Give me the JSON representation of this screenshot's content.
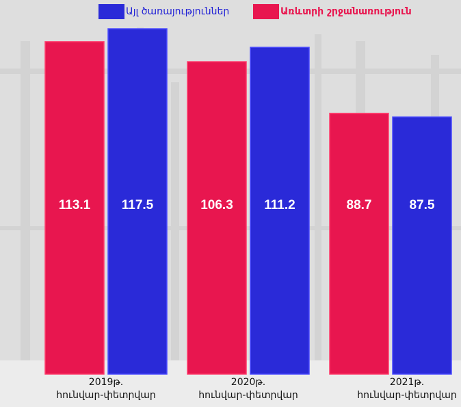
{
  "legend": {
    "items": [
      {
        "label": "Այլ ծառայություններ",
        "color": "#2a2ad8",
        "label_color": "#1f1fd6"
      },
      {
        "label": "Առևտրի շրջանառություն",
        "color": "#e8164f",
        "label_color": "#e8164f"
      }
    ]
  },
  "chart_data": {
    "type": "bar",
    "categories": [
      [
        "2019թ.",
        "հունվար-փետրվար"
      ],
      [
        "2020թ.",
        "հունվար-փետրվար"
      ],
      [
        "2021թ.",
        "հունվար-փետրվար"
      ]
    ],
    "series": [
      {
        "name": "Առևտրի շրջանառություն",
        "color": "#e8164f",
        "values": [
          113.1,
          106.3,
          88.7
        ]
      },
      {
        "name": "Այլ ծառայություններ",
        "color": "#2a2ad8",
        "values": [
          117.5,
          111.2,
          87.5
        ]
      }
    ],
    "data_labels": [
      [
        "113.1",
        "106.3",
        "88.7"
      ],
      [
        "117.5",
        "111.2",
        "87.5"
      ]
    ],
    "legend_position": "top",
    "grid": false
  }
}
